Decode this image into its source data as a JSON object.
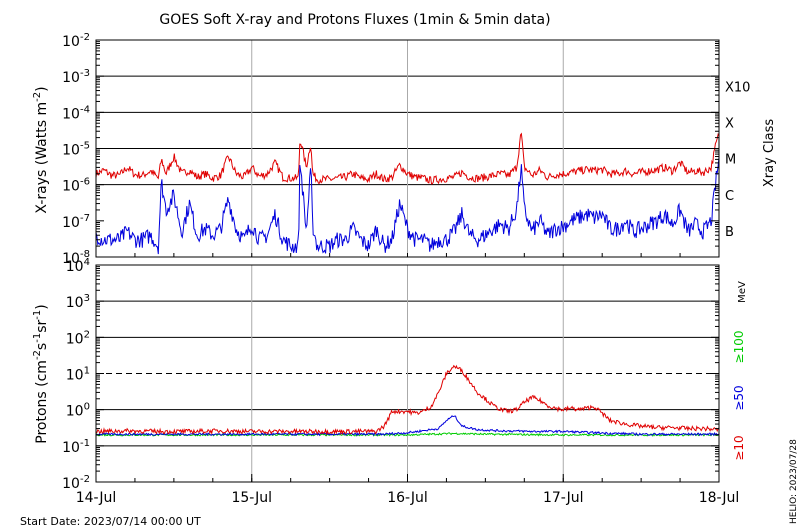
{
  "chart_data": [
    {
      "type": "line",
      "title": "GOES Soft X-ray and Protons Fluxes   (1min & 5min data)",
      "ylabel": "X-rays (Watts m",
      "ylabel_sup": "-2",
      "ylabel_close": ")",
      "yscale": "log",
      "ylim": [
        1e-08,
        0.01
      ],
      "ytick_labels": [
        {
          "exp": -8,
          "base": "10",
          "sup": "-8"
        },
        {
          "exp": -7,
          "base": "10",
          "sup": "-7"
        },
        {
          "exp": -6,
          "base": "10",
          "sup": "-6"
        },
        {
          "exp": -5,
          "base": "10",
          "sup": "-5"
        },
        {
          "exp": -4,
          "base": "10",
          "sup": "-4"
        },
        {
          "exp": -3,
          "base": "10",
          "sup": "-3"
        },
        {
          "exp": -2,
          "base": "10",
          "sup": "-2"
        }
      ],
      "right_axis_label": "Xray Class",
      "class_labels": [
        {
          "exp": -7.5,
          "label": "B"
        },
        {
          "exp": -6.5,
          "label": "C"
        },
        {
          "exp": -5.5,
          "label": "M"
        },
        {
          "exp": -4.5,
          "label": "X"
        },
        {
          "exp": -3.5,
          "label": "X10"
        }
      ],
      "grid": "horizontal at each decade from 1e-6 to 1e-3; vertical at day boundaries",
      "series": [
        {
          "color": "#e00000",
          "x": [
            14.0,
            14.05,
            14.1,
            14.15,
            14.2,
            14.25,
            14.3,
            14.35,
            14.4,
            14.42,
            14.45,
            14.5,
            14.55,
            14.6,
            14.65,
            14.7,
            14.75,
            14.8,
            14.85,
            14.9,
            14.95,
            15.0,
            15.05,
            15.1,
            15.15,
            15.2,
            15.25,
            15.3,
            15.31,
            15.35,
            15.38,
            15.39,
            15.42,
            15.45,
            15.5,
            15.55,
            15.6,
            15.65,
            15.7,
            15.75,
            15.8,
            15.85,
            15.9,
            15.95,
            16.0,
            16.05,
            16.1,
            16.15,
            16.2,
            16.25,
            16.3,
            16.35,
            16.4,
            16.45,
            16.5,
            16.55,
            16.6,
            16.65,
            16.7,
            16.73,
            16.75,
            16.8,
            16.85,
            16.9,
            16.95,
            17.0,
            17.05,
            17.1,
            17.15,
            17.2,
            17.25,
            17.3,
            17.35,
            17.4,
            17.45,
            17.5,
            17.55,
            17.6,
            17.65,
            17.7,
            17.75,
            17.8,
            17.85,
            17.9,
            17.95,
            17.98,
            18.0
          ],
          "y": [
            2e-06,
            2.5e-06,
            1.8e-06,
            1.8e-06,
            3e-06,
            1.9e-06,
            1.8e-06,
            2.4e-06,
            1.5e-06,
            5e-06,
            2e-06,
            6e-06,
            2e-06,
            2.5e-06,
            1.6e-06,
            2e-06,
            1.5e-06,
            1.8e-06,
            6e-06,
            2e-06,
            1.6e-06,
            3e-06,
            1.7e-06,
            2e-06,
            4e-06,
            1.6e-06,
            1.5e-06,
            1.5e-06,
            2e-05,
            3e-06,
            1.5e-05,
            2e-06,
            1.4e-06,
            1.4e-06,
            1.4e-06,
            1.5e-06,
            1.6e-06,
            2e-06,
            1.5e-06,
            1.4e-06,
            2e-06,
            1.4e-06,
            1.6e-06,
            3.5e-06,
            2e-06,
            1.6e-06,
            1.5e-06,
            1.3e-06,
            1.4e-06,
            1.5e-06,
            1.6e-06,
            2.2e-06,
            1.6e-06,
            1.5e-06,
            1.6e-06,
            1.8e-06,
            2e-06,
            1.8e-06,
            3e-06,
            2.8e-05,
            3e-06,
            1.8e-06,
            2.5e-06,
            1.6e-06,
            1.9e-06,
            2e-06,
            2.2e-06,
            2.4e-06,
            2.6e-06,
            2.5e-06,
            2.6e-06,
            2e-06,
            2e-06,
            2.4e-06,
            2e-06,
            2.2e-06,
            2.4e-06,
            2.6e-06,
            3e-06,
            2.4e-06,
            4e-06,
            2.2e-06,
            2.4e-06,
            2.2e-06,
            3e-06,
            1.3e-05,
            2.5e-05
          ]
        },
        {
          "color": "#0000dd",
          "x": [
            14.0,
            14.05,
            14.1,
            14.15,
            14.2,
            14.25,
            14.3,
            14.35,
            14.4,
            14.42,
            14.45,
            14.5,
            14.55,
            14.6,
            14.65,
            14.7,
            14.75,
            14.8,
            14.85,
            14.9,
            14.95,
            15.0,
            15.05,
            15.1,
            15.15,
            15.2,
            15.25,
            15.3,
            15.31,
            15.35,
            15.38,
            15.39,
            15.42,
            15.45,
            15.5,
            15.55,
            15.6,
            15.65,
            15.7,
            15.75,
            15.8,
            15.85,
            15.9,
            15.95,
            16.0,
            16.05,
            16.1,
            16.15,
            16.2,
            16.25,
            16.3,
            16.35,
            16.4,
            16.45,
            16.5,
            16.55,
            16.6,
            16.65,
            16.7,
            16.73,
            16.75,
            16.8,
            16.85,
            16.9,
            16.95,
            17.0,
            17.05,
            17.1,
            17.15,
            17.2,
            17.25,
            17.3,
            17.35,
            17.4,
            17.45,
            17.5,
            17.55,
            17.6,
            17.65,
            17.7,
            17.75,
            17.8,
            17.85,
            17.9,
            17.95,
            17.98,
            18.0
          ],
          "y": [
            4e-08,
            3e-08,
            3e-08,
            3e-08,
            5e-08,
            3e-08,
            3e-08,
            4e-08,
            2e-08,
            1.2e-06,
            2e-07,
            5e-07,
            5e-08,
            3e-07,
            4e-08,
            6e-08,
            4e-08,
            6e-08,
            4e-07,
            6e-08,
            3e-08,
            8e-08,
            3e-08,
            4e-08,
            1.5e-07,
            3e-08,
            2e-08,
            2e-08,
            5e-06,
            5e-08,
            3e-06,
            8e-08,
            2e-08,
            2e-08,
            2e-08,
            3e-08,
            3e-08,
            6e-08,
            3e-08,
            2e-08,
            6e-08,
            2e-08,
            3e-08,
            3e-07,
            6e-08,
            3e-08,
            3e-08,
            2e-08,
            3e-08,
            3e-08,
            5e-08,
            1.5e-07,
            4e-08,
            3e-08,
            4e-08,
            6e-08,
            8e-08,
            6e-08,
            2e-07,
            3e-06,
            2e-07,
            5e-08,
            1e-07,
            4e-08,
            6e-08,
            7e-08,
            1e-07,
            1.2e-07,
            1.5e-07,
            1.2e-07,
            1.5e-07,
            6e-08,
            6e-08,
            1e-07,
            5e-08,
            6e-08,
            8e-08,
            1e-07,
            1.5e-07,
            8e-08,
            2e-07,
            5e-08,
            8e-08,
            5e-08,
            1e-07,
            1.2e-06,
            5e-06
          ]
        }
      ]
    },
    {
      "type": "line",
      "ylabel": "Protons (cm",
      "ylabel_sup1": "-2",
      "ylabel_mid": "s",
      "ylabel_sup2": "-1",
      "ylabel_mid2": "sr",
      "ylabel_sup3": "-1",
      "ylabel_close": ")",
      "yscale": "log",
      "ylim": [
        0.01,
        10000
      ],
      "ytick_labels": [
        {
          "exp": -2,
          "base": "10",
          "sup": "-2"
        },
        {
          "exp": -1,
          "base": "10",
          "sup": "-1"
        },
        {
          "exp": 0,
          "base": "10",
          "sup": "0"
        },
        {
          "exp": 1,
          "base": "10",
          "sup": "1"
        },
        {
          "exp": 2,
          "base": "10",
          "sup": "2"
        },
        {
          "exp": 3,
          "base": "10",
          "sup": "3"
        },
        {
          "exp": 4,
          "base": "10",
          "sup": "4"
        }
      ],
      "dashed_line": 10,
      "right_labels": [
        {
          "text": "MeV",
          "color": "#000000"
        },
        {
          "text": "≥100",
          "color": "#00cc00"
        },
        {
          "text": "≥50",
          "color": "#0000dd"
        },
        {
          "text": "≥10",
          "color": "#e00000"
        }
      ],
      "series": [
        {
          "color": "#e00000",
          "x": [
            14.0,
            14.2,
            14.4,
            14.6,
            14.8,
            15.0,
            15.2,
            15.4,
            15.6,
            15.8,
            15.85,
            15.88,
            15.9,
            16.0,
            16.05,
            16.1,
            16.15,
            16.2,
            16.25,
            16.3,
            16.35,
            16.4,
            16.45,
            16.5,
            16.55,
            16.6,
            16.65,
            16.7,
            16.75,
            16.8,
            16.85,
            16.9,
            16.95,
            17.0,
            17.05,
            17.1,
            17.15,
            17.2,
            17.25,
            17.3,
            17.4,
            17.5,
            17.6,
            17.7,
            17.8,
            17.9,
            18.0
          ],
          "y": [
            0.25,
            0.26,
            0.25,
            0.25,
            0.26,
            0.25,
            0.25,
            0.25,
            0.25,
            0.25,
            0.35,
            0.6,
            0.9,
            0.9,
            0.8,
            0.9,
            1.2,
            3,
            10,
            16,
            12,
            6,
            3,
            2,
            1.3,
            1.0,
            0.9,
            1.0,
            1.6,
            2.2,
            1.8,
            1.3,
            1.1,
            1.0,
            1.1,
            1.0,
            1.1,
            1.2,
            0.8,
            0.5,
            0.4,
            0.35,
            0.32,
            0.32,
            0.3,
            0.3,
            0.28
          ]
        },
        {
          "color": "#0000dd",
          "x": [
            14.0,
            14.5,
            15.0,
            15.5,
            15.85,
            16.0,
            16.2,
            16.25,
            16.3,
            16.35,
            16.45,
            16.6,
            16.8,
            17.0,
            17.2,
            17.5,
            17.8,
            18.0
          ],
          "y": [
            0.21,
            0.21,
            0.21,
            0.21,
            0.21,
            0.23,
            0.3,
            0.5,
            0.7,
            0.35,
            0.28,
            0.26,
            0.25,
            0.25,
            0.23,
            0.21,
            0.21,
            0.21
          ]
        },
        {
          "color": "#00cc00",
          "x": [
            14.0,
            14.5,
            15.0,
            15.5,
            16.0,
            16.3,
            16.5,
            17.0,
            17.5,
            18.0
          ],
          "y": [
            0.2,
            0.2,
            0.2,
            0.2,
            0.2,
            0.22,
            0.21,
            0.2,
            0.2,
            0.2
          ]
        }
      ]
    }
  ],
  "xaxis": {
    "xlim": [
      14,
      18
    ],
    "tick_labels": [
      {
        "x": 14,
        "label": "14-Jul"
      },
      {
        "x": 15,
        "label": "15-Jul"
      },
      {
        "x": 16,
        "label": "16-Jul"
      },
      {
        "x": 17,
        "label": "17-Jul"
      },
      {
        "x": 18,
        "label": "18-Jul"
      }
    ]
  },
  "footer": {
    "start_date": "Start Date: 2023/07/14 00:00 UT",
    "helio_stamp": "HELIO: 2023/07/28"
  }
}
